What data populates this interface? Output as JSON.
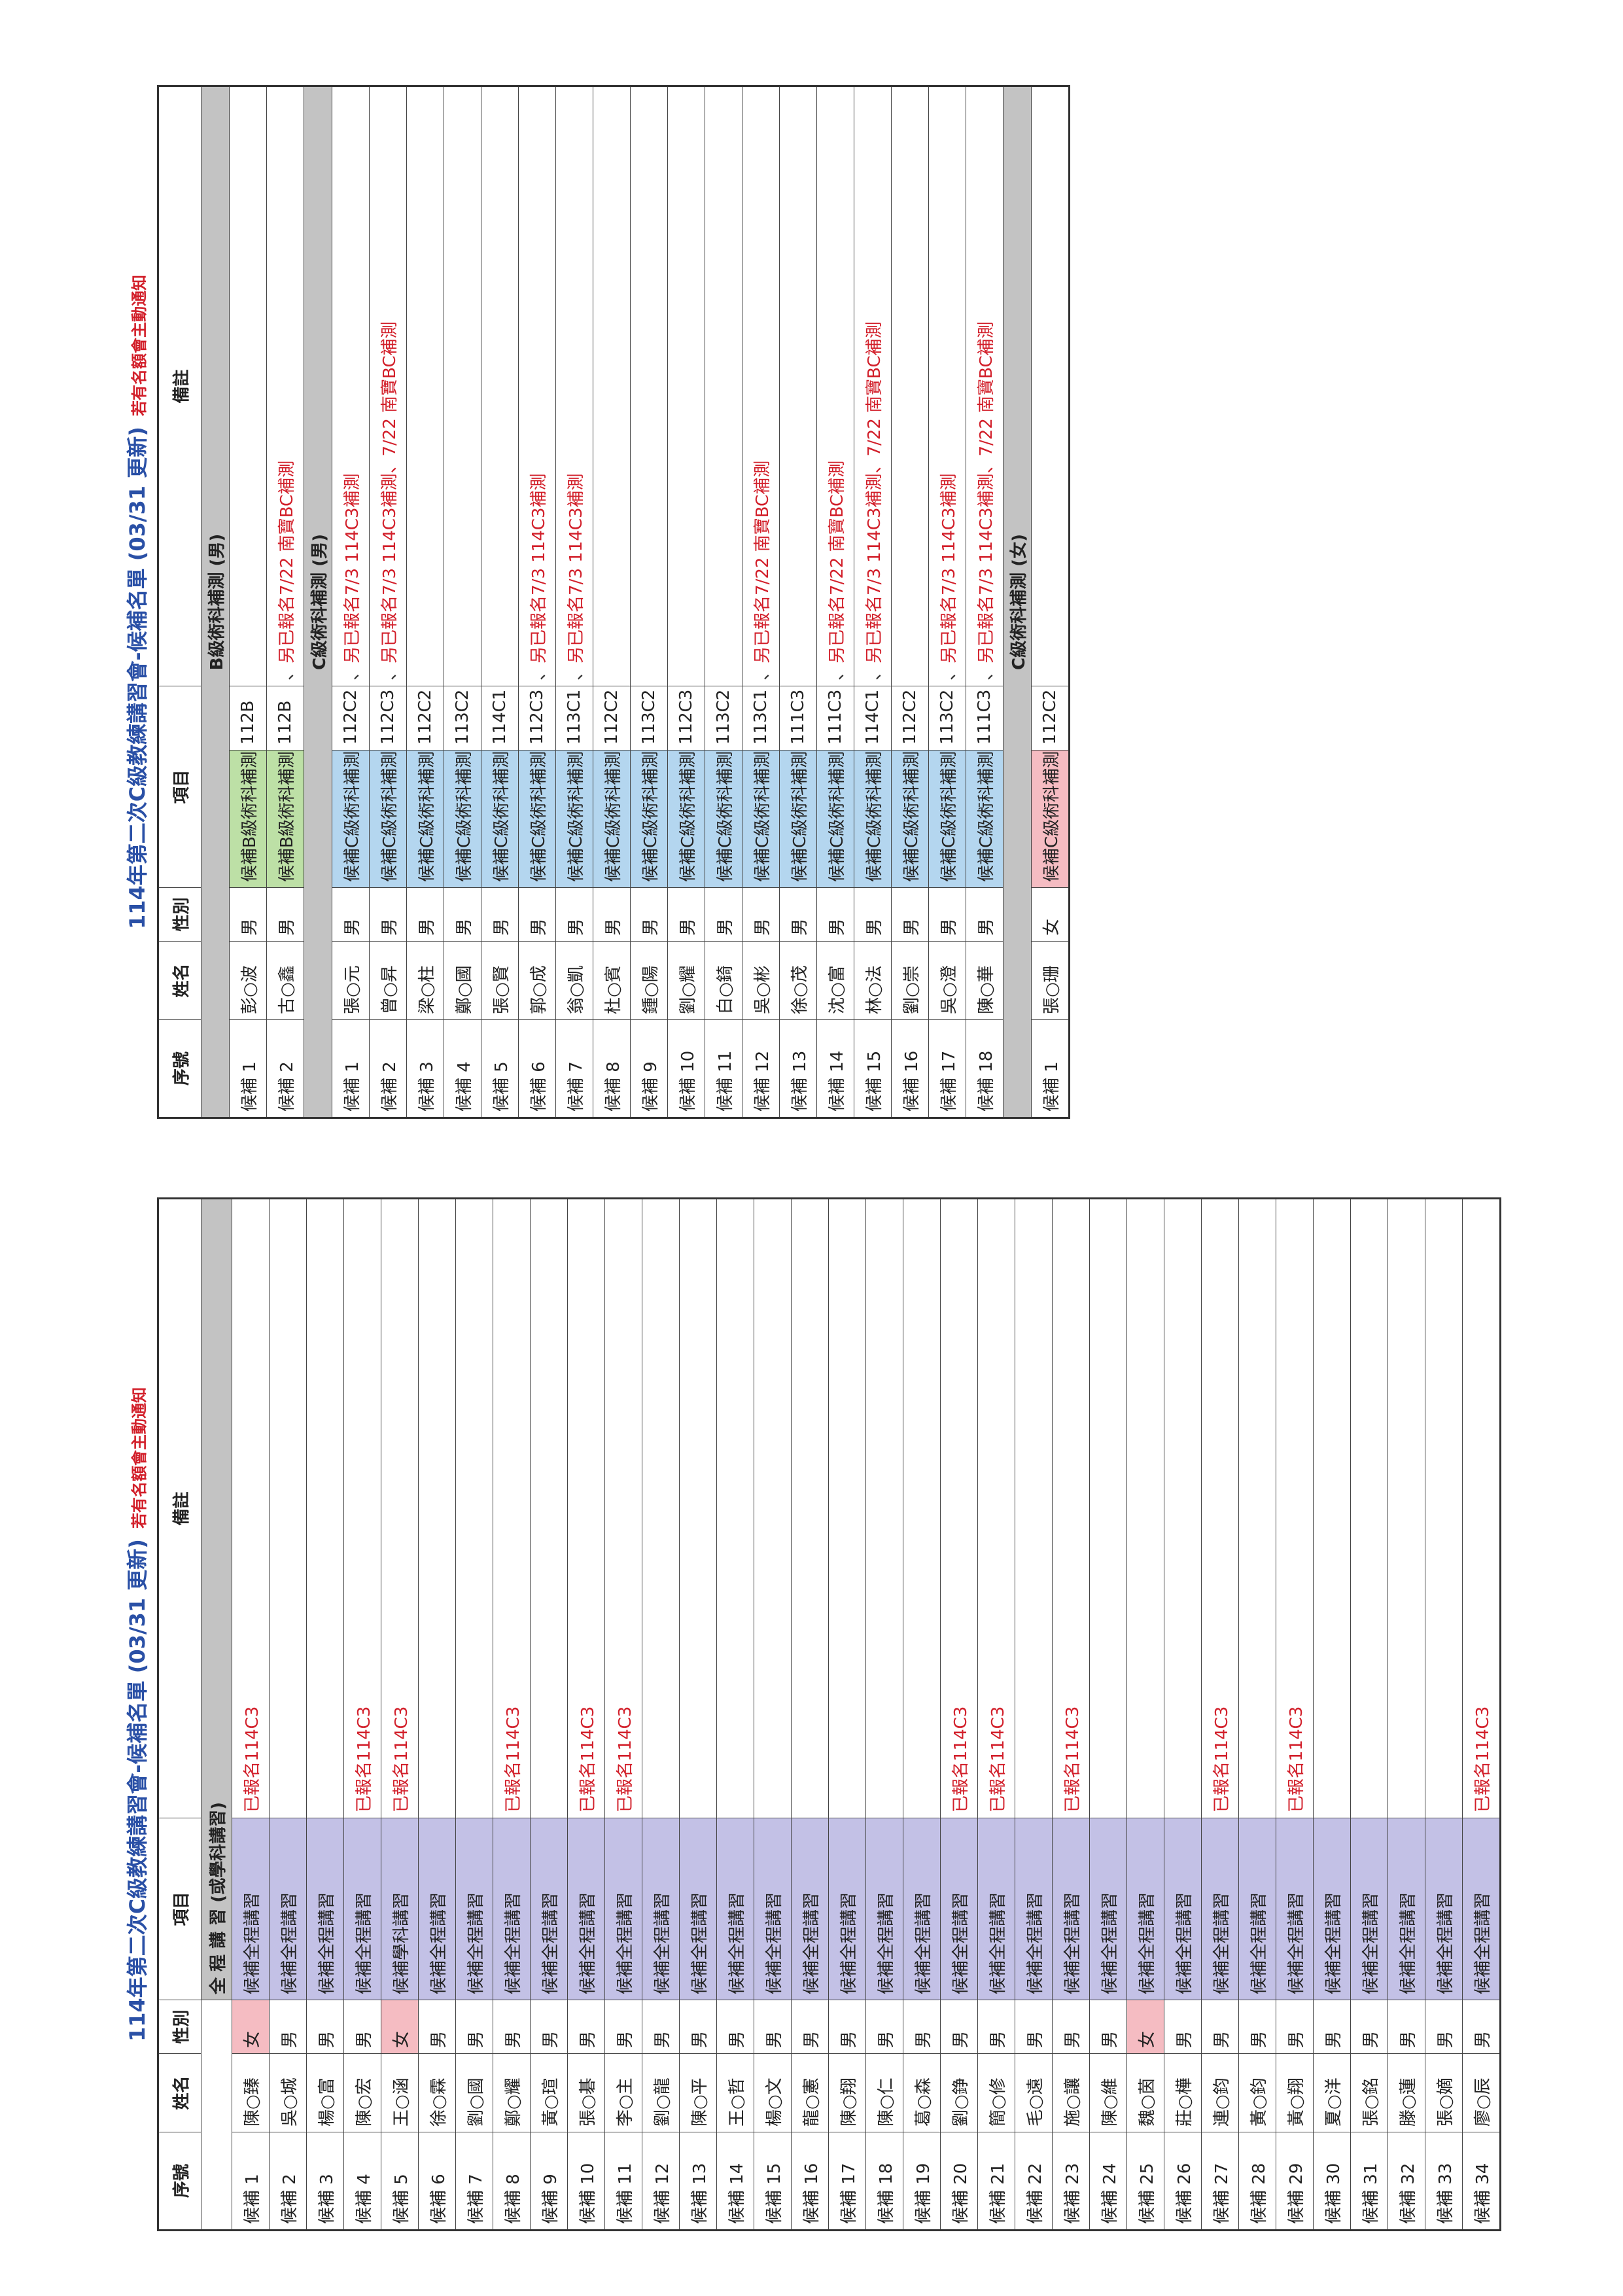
{
  "left": {
    "title": "114年第二次C級教練講習會-候補名單 (03/31 更新)",
    "note": "若有名額會主動通知",
    "headers": {
      "no": "序號",
      "name": "姓名",
      "sex": "性別",
      "item": "項目",
      "remark": "備註"
    },
    "sub_header": "全 程 講 習 (或學科講習)",
    "rows": [
      {
        "no": "候補 1",
        "name": "陳○臻",
        "sex": "女",
        "item": "候補全程講習",
        "remark": "已報名114C3"
      },
      {
        "no": "候補 2",
        "name": "吳○城",
        "sex": "男",
        "item": "候補全程講習",
        "remark": ""
      },
      {
        "no": "候補 3",
        "name": "楊○富",
        "sex": "男",
        "item": "候補全程講習",
        "remark": ""
      },
      {
        "no": "候補 4",
        "name": "陳○宏",
        "sex": "男",
        "item": "候補全程講習",
        "remark": "已報名114C3"
      },
      {
        "no": "候補 5",
        "name": "王○涵",
        "sex": "女",
        "item": "候補學科講習",
        "remark": "已報名114C3"
      },
      {
        "no": "候補 6",
        "name": "徐○霖",
        "sex": "男",
        "item": "候補全程講習",
        "remark": ""
      },
      {
        "no": "候補 7",
        "name": "劉○國",
        "sex": "男",
        "item": "候補全程講習",
        "remark": ""
      },
      {
        "no": "候補 8",
        "name": "鄭○耀",
        "sex": "男",
        "item": "候補全程講習",
        "remark": "已報名114C3"
      },
      {
        "no": "候補 9",
        "name": "黃○瑄",
        "sex": "男",
        "item": "候補全程講習",
        "remark": ""
      },
      {
        "no": "候補 10",
        "name": "張○碁",
        "sex": "男",
        "item": "候補全程講習",
        "remark": "已報名114C3"
      },
      {
        "no": "候補 11",
        "name": "李○主",
        "sex": "男",
        "item": "候補全程講習",
        "remark": "已報名114C3"
      },
      {
        "no": "候補 12",
        "name": "劉○龍",
        "sex": "男",
        "item": "候補全程講習",
        "remark": ""
      },
      {
        "no": "候補 13",
        "name": "陳○平",
        "sex": "男",
        "item": "候補全程講習",
        "remark": ""
      },
      {
        "no": "候補 14",
        "name": "王○哲",
        "sex": "男",
        "item": "候補全程講習",
        "remark": ""
      },
      {
        "no": "候補 15",
        "name": "楊○文",
        "sex": "男",
        "item": "候補全程講習",
        "remark": ""
      },
      {
        "no": "候補 16",
        "name": "龍○憲",
        "sex": "男",
        "item": "候補全程講習",
        "remark": ""
      },
      {
        "no": "候補 17",
        "name": "陳○翔",
        "sex": "男",
        "item": "候補全程講習",
        "remark": ""
      },
      {
        "no": "候補 18",
        "name": "陳○仁",
        "sex": "男",
        "item": "候補全程講習",
        "remark": ""
      },
      {
        "no": "候補 19",
        "name": "葛○森",
        "sex": "男",
        "item": "候補全程講習",
        "remark": ""
      },
      {
        "no": "候補 20",
        "name": "劉○錚",
        "sex": "男",
        "item": "候補全程講習",
        "remark": "已報名114C3"
      },
      {
        "no": "候補 21",
        "name": "簡○修",
        "sex": "男",
        "item": "候補全程講習",
        "remark": "已報名114C3"
      },
      {
        "no": "候補 22",
        "name": "毛○遠",
        "sex": "男",
        "item": "候補全程講習",
        "remark": ""
      },
      {
        "no": "候補 23",
        "name": "施○讓",
        "sex": "男",
        "item": "候補全程講習",
        "remark": "已報名114C3"
      },
      {
        "no": "候補 24",
        "name": "陳○維",
        "sex": "男",
        "item": "候補全程講習",
        "remark": ""
      },
      {
        "no": "候補 25",
        "name": "魏○茵",
        "sex": "女",
        "item": "候補全程講習",
        "remark": ""
      },
      {
        "no": "候補 26",
        "name": "莊○樺",
        "sex": "男",
        "item": "候補全程講習",
        "remark": ""
      },
      {
        "no": "候補 27",
        "name": "連○鈞",
        "sex": "男",
        "item": "候補全程講習",
        "remark": "已報名114C3"
      },
      {
        "no": "候補 28",
        "name": "黃○鈞",
        "sex": "男",
        "item": "候補全程講習",
        "remark": ""
      },
      {
        "no": "候補 29",
        "name": "黃○翔",
        "sex": "男",
        "item": "候補全程講習",
        "remark": "已報名114C3"
      },
      {
        "no": "候補 30",
        "name": "夏○洋",
        "sex": "男",
        "item": "候補全程講習",
        "remark": ""
      },
      {
        "no": "候補 31",
        "name": "張○銘",
        "sex": "男",
        "item": "候補全程講習",
        "remark": ""
      },
      {
        "no": "候補 32",
        "name": "滕○蓮",
        "sex": "男",
        "item": "候補全程講習",
        "remark": ""
      },
      {
        "no": "候補 33",
        "name": "張○嫡",
        "sex": "男",
        "item": "候補全程講習",
        "remark": ""
      },
      {
        "no": "候補 34",
        "name": "廖○辰",
        "sex": "男",
        "item": "候補全程講習",
        "remark": "已報名114C3"
      }
    ]
  },
  "right": {
    "title": "114年第二次C級教練講習會-候補名單 (03/31 更新)",
    "note": "若有名額會主動通知",
    "headers": {
      "no": "序號",
      "name": "姓名",
      "sex": "性別",
      "item": "項目",
      "remark": "備註"
    },
    "sections": [
      {
        "label": "B級術科補測 (男)",
        "kind": "b",
        "rows": [
          {
            "no": "候補 1",
            "name": "彭○波",
            "sex": "男",
            "item": "候補B級術科補測",
            "code": "112B",
            "remark": ""
          },
          {
            "no": "候補 2",
            "name": "古○鑫",
            "sex": "男",
            "item": "候補B級術科補測",
            "code": "112B",
            "remark": "另已報名7/22 南寶BC補測"
          }
        ]
      },
      {
        "label": "C級術科補測 (男)",
        "kind": "c",
        "rows": [
          {
            "no": "候補 1",
            "name": "張○元",
            "sex": "男",
            "item": "候補C級術科補測",
            "code": "112C2",
            "remark": "另已報名7/3 114C3補測"
          },
          {
            "no": "候補 2",
            "name": "曾○昇",
            "sex": "男",
            "item": "候補C級術科補測",
            "code": "112C3",
            "remark": "另已報名7/3 114C3補測",
            "remark2": "7/22 南寶BC補測"
          },
          {
            "no": "候補 3",
            "name": "梁○柱",
            "sex": "男",
            "item": "候補C級術科補測",
            "code": "112C2",
            "remark": ""
          },
          {
            "no": "候補 4",
            "name": "鄭○國",
            "sex": "男",
            "item": "候補C級術科補測",
            "code": "113C2",
            "remark": ""
          },
          {
            "no": "候補 5",
            "name": "張○賢",
            "sex": "男",
            "item": "候補C級術科補測",
            "code": "114C1",
            "remark": ""
          },
          {
            "no": "候補 6",
            "name": "郭○成",
            "sex": "男",
            "item": "候補C級術科補測",
            "code": "112C3",
            "remark": "另已報名7/3 114C3補測"
          },
          {
            "no": "候補 7",
            "name": "翁○凱",
            "sex": "男",
            "item": "候補C級術科補測",
            "code": "113C1",
            "remark": "另已報名7/3 114C3補測"
          },
          {
            "no": "候補 8",
            "name": "杜○賓",
            "sex": "男",
            "item": "候補C級術科補測",
            "code": "112C2",
            "remark": ""
          },
          {
            "no": "候補 9",
            "name": "鍾○陽",
            "sex": "男",
            "item": "候補C級術科補測",
            "code": "113C2",
            "remark": ""
          },
          {
            "no": "候補 10",
            "name": "劉○耀",
            "sex": "男",
            "item": "候補C級術科補測",
            "code": "112C3",
            "remark": ""
          },
          {
            "no": "候補 11",
            "name": "白○錡",
            "sex": "男",
            "item": "候補C級術科補測",
            "code": "113C2",
            "remark": ""
          },
          {
            "no": "候補 12",
            "name": "吳○彬",
            "sex": "男",
            "item": "候補C級術科補測",
            "code": "113C1",
            "remark": "另已報名7/22 南寶BC補測"
          },
          {
            "no": "候補 13",
            "name": "徐○茂",
            "sex": "男",
            "item": "候補C級術科補測",
            "code": "111C3",
            "remark": ""
          },
          {
            "no": "候補 14",
            "name": "沈○富",
            "sex": "男",
            "item": "候補C級術科補測",
            "code": "111C3",
            "remark": "另已報名7/22 南寶BC補測"
          },
          {
            "no": "候補 15",
            "name": "林○法",
            "sex": "男",
            "item": "候補C級術科補測",
            "code": "114C1",
            "remark": "另已報名7/3 114C3補測",
            "remark2": "7/22 南寶BC補測"
          },
          {
            "no": "候補 16",
            "name": "劉○崇",
            "sex": "男",
            "item": "候補C級術科補測",
            "code": "112C2",
            "remark": ""
          },
          {
            "no": "候補 17",
            "name": "吳○澄",
            "sex": "男",
            "item": "候補C級術科補測",
            "code": "113C2",
            "remark": "另已報名7/3 114C3補測"
          },
          {
            "no": "候補 18",
            "name": "陳○華",
            "sex": "男",
            "item": "候補C級術科補測",
            "code": "111C3",
            "remark": "另已報名7/3 114C3補測",
            "remark2": "7/22 南寶BC補測"
          }
        ]
      },
      {
        "label": "C級術科補測 (女)",
        "kind": "cf",
        "rows": [
          {
            "no": "候補 1",
            "name": "張○珊",
            "sex": "女",
            "item": "候補C級術科補測",
            "code": "112C2",
            "remark": ""
          }
        ]
      }
    ]
  }
}
